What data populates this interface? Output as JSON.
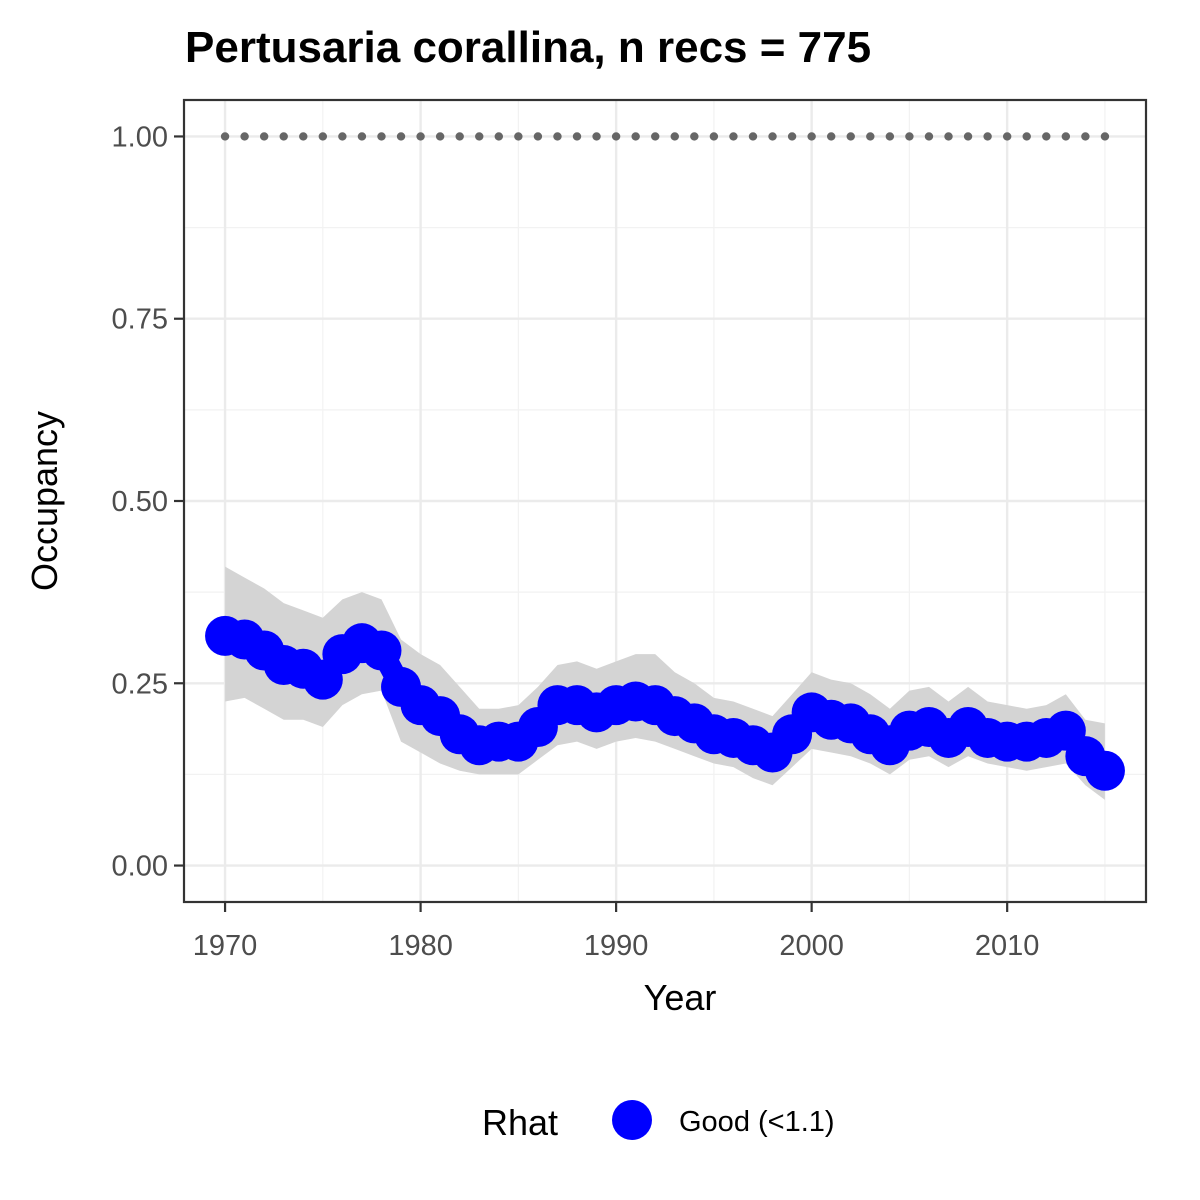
{
  "chart_data": {
    "type": "line",
    "title": "Pertusaria corallina, n recs = 775",
    "xlabel": "Year",
    "ylabel": "Occupancy",
    "xlim": [
      1967.9,
      2017.1
    ],
    "ylim": [
      -0.05,
      1.05
    ],
    "x_ticks": [
      1970,
      1980,
      1990,
      2000,
      2010
    ],
    "x_tick_labels": [
      "1970",
      "1980",
      "1990",
      "2000",
      "2010"
    ],
    "y_ticks": [
      0,
      0.25,
      0.5,
      0.75,
      1
    ],
    "y_tick_labels": [
      "0.00",
      "0.25",
      "0.50",
      "0.75",
      "1.00"
    ],
    "grid": true,
    "x": [
      1970,
      1971,
      1972,
      1973,
      1974,
      1975,
      1976,
      1977,
      1978,
      1979,
      1980,
      1981,
      1982,
      1983,
      1984,
      1985,
      1986,
      1987,
      1988,
      1989,
      1990,
      1991,
      1992,
      1993,
      1994,
      1995,
      1996,
      1997,
      1998,
      1999,
      2000,
      2001,
      2002,
      2003,
      2004,
      2005,
      2006,
      2007,
      2008,
      2009,
      2010,
      2011,
      2012,
      2013,
      2014,
      2015
    ],
    "series": [
      {
        "values": [
          0.315,
          0.31,
          0.295,
          0.275,
          0.27,
          0.255,
          0.29,
          0.305,
          0.295,
          0.245,
          0.22,
          0.205,
          0.18,
          0.165,
          0.17,
          0.17,
          0.19,
          0.22,
          0.22,
          0.21,
          0.22,
          0.225,
          0.22,
          0.205,
          0.195,
          0.18,
          0.175,
          0.165,
          0.155,
          0.18,
          0.21,
          0.2,
          0.195,
          0.18,
          0.165,
          0.185,
          0.19,
          0.175,
          0.19,
          0.175,
          0.17,
          0.17,
          0.175,
          0.185,
          0.15,
          0.13
        ],
        "lower": [
          0.225,
          0.23,
          0.215,
          0.2,
          0.2,
          0.19,
          0.22,
          0.235,
          0.24,
          0.17,
          0.155,
          0.14,
          0.13,
          0.125,
          0.125,
          0.125,
          0.145,
          0.165,
          0.17,
          0.16,
          0.17,
          0.175,
          0.17,
          0.16,
          0.15,
          0.14,
          0.135,
          0.12,
          0.11,
          0.135,
          0.16,
          0.155,
          0.15,
          0.14,
          0.125,
          0.145,
          0.15,
          0.135,
          0.15,
          0.14,
          0.135,
          0.13,
          0.135,
          0.14,
          0.11,
          0.09
        ],
        "upper": [
          0.41,
          0.395,
          0.38,
          0.36,
          0.35,
          0.34,
          0.365,
          0.375,
          0.365,
          0.31,
          0.29,
          0.275,
          0.245,
          0.215,
          0.215,
          0.22,
          0.245,
          0.275,
          0.28,
          0.27,
          0.28,
          0.29,
          0.29,
          0.265,
          0.25,
          0.23,
          0.225,
          0.215,
          0.205,
          0.235,
          0.265,
          0.255,
          0.25,
          0.235,
          0.215,
          0.24,
          0.245,
          0.225,
          0.245,
          0.225,
          0.22,
          0.215,
          0.22,
          0.235,
          0.2,
          0.195
        ],
        "color": "#0000ff",
        "band_color": "#d4d4d4"
      }
    ],
    "reference_line": {
      "y": 1.0,
      "style": "dotted",
      "color": "#666666"
    },
    "legend": {
      "title": "Rhat",
      "position": "bottom",
      "entries": [
        {
          "label": "Good (<1.1)",
          "color": "#0000ff"
        }
      ]
    }
  }
}
